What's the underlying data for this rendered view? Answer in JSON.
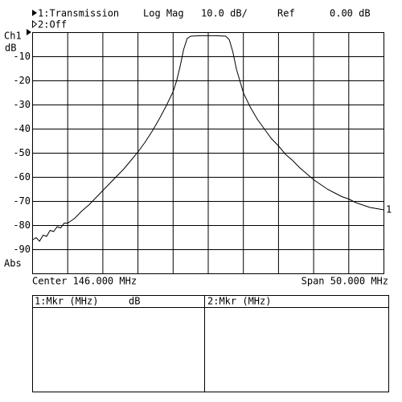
{
  "chart_data": {
    "type": "line",
    "trace1": "1:Transmission",
    "format": "Log Mag",
    "scale": "10.0 dB/",
    "ref_label": "Ref",
    "ref": "0.00 dB",
    "trace2": "2:Off",
    "channel": "Ch1",
    "ylabel": "dB",
    "ylabel_bottom": "Abs",
    "center": "Center 146.000 MHz",
    "span": "Span 50.000 MHz",
    "trace_marker": "1",
    "x": [
      121,
      121.5,
      122,
      122.5,
      123,
      123.5,
      124,
      124.5,
      125,
      125.5,
      126,
      127,
      128,
      129,
      130,
      131,
      132,
      133,
      134,
      135,
      136,
      137,
      138,
      139,
      140,
      141,
      141.5,
      142,
      142.5,
      143,
      143.5,
      145,
      147,
      148.5,
      149,
      149.5,
      150,
      150.5,
      151,
      152,
      153,
      154,
      155,
      156,
      157,
      158,
      159,
      160,
      161,
      162,
      163,
      164,
      165,
      166,
      167,
      168,
      169,
      170,
      171
    ],
    "series": [
      {
        "color": "#000000",
        "values": [
          -86,
          -85,
          -86.5,
          -84,
          -84.5,
          -82,
          -82.5,
          -80.5,
          -81,
          -79,
          -79,
          -77,
          -74,
          -71.5,
          -68.5,
          -65.5,
          -62.5,
          -59.5,
          -56.5,
          -53,
          -49.5,
          -45.5,
          -41,
          -36,
          -30.5,
          -24.5,
          -20,
          -14,
          -7,
          -2.5,
          -1.5,
          -1.3,
          -1.3,
          -1.5,
          -3,
          -8,
          -15,
          -20,
          -25,
          -31,
          -36,
          -40,
          -44,
          -47,
          -50.5,
          -53,
          -56,
          -58.5,
          -61,
          -63,
          -65,
          -66.5,
          -68,
          -69,
          -70.5,
          -71.5,
          -72.5,
          -73,
          -73.5
        ]
      }
    ],
    "xlim": [
      121,
      171
    ],
    "ylim": [
      -100,
      0
    ],
    "yticks": [
      -10,
      -20,
      -30,
      -40,
      -50,
      -60,
      -70,
      -80,
      -90
    ],
    "grid": true,
    "marker_table": {
      "columns": [
        {
          "title": "1:Mkr (MHz)",
          "unit": "dB"
        },
        {
          "title": "2:Mkr (MHz)"
        }
      ]
    }
  }
}
